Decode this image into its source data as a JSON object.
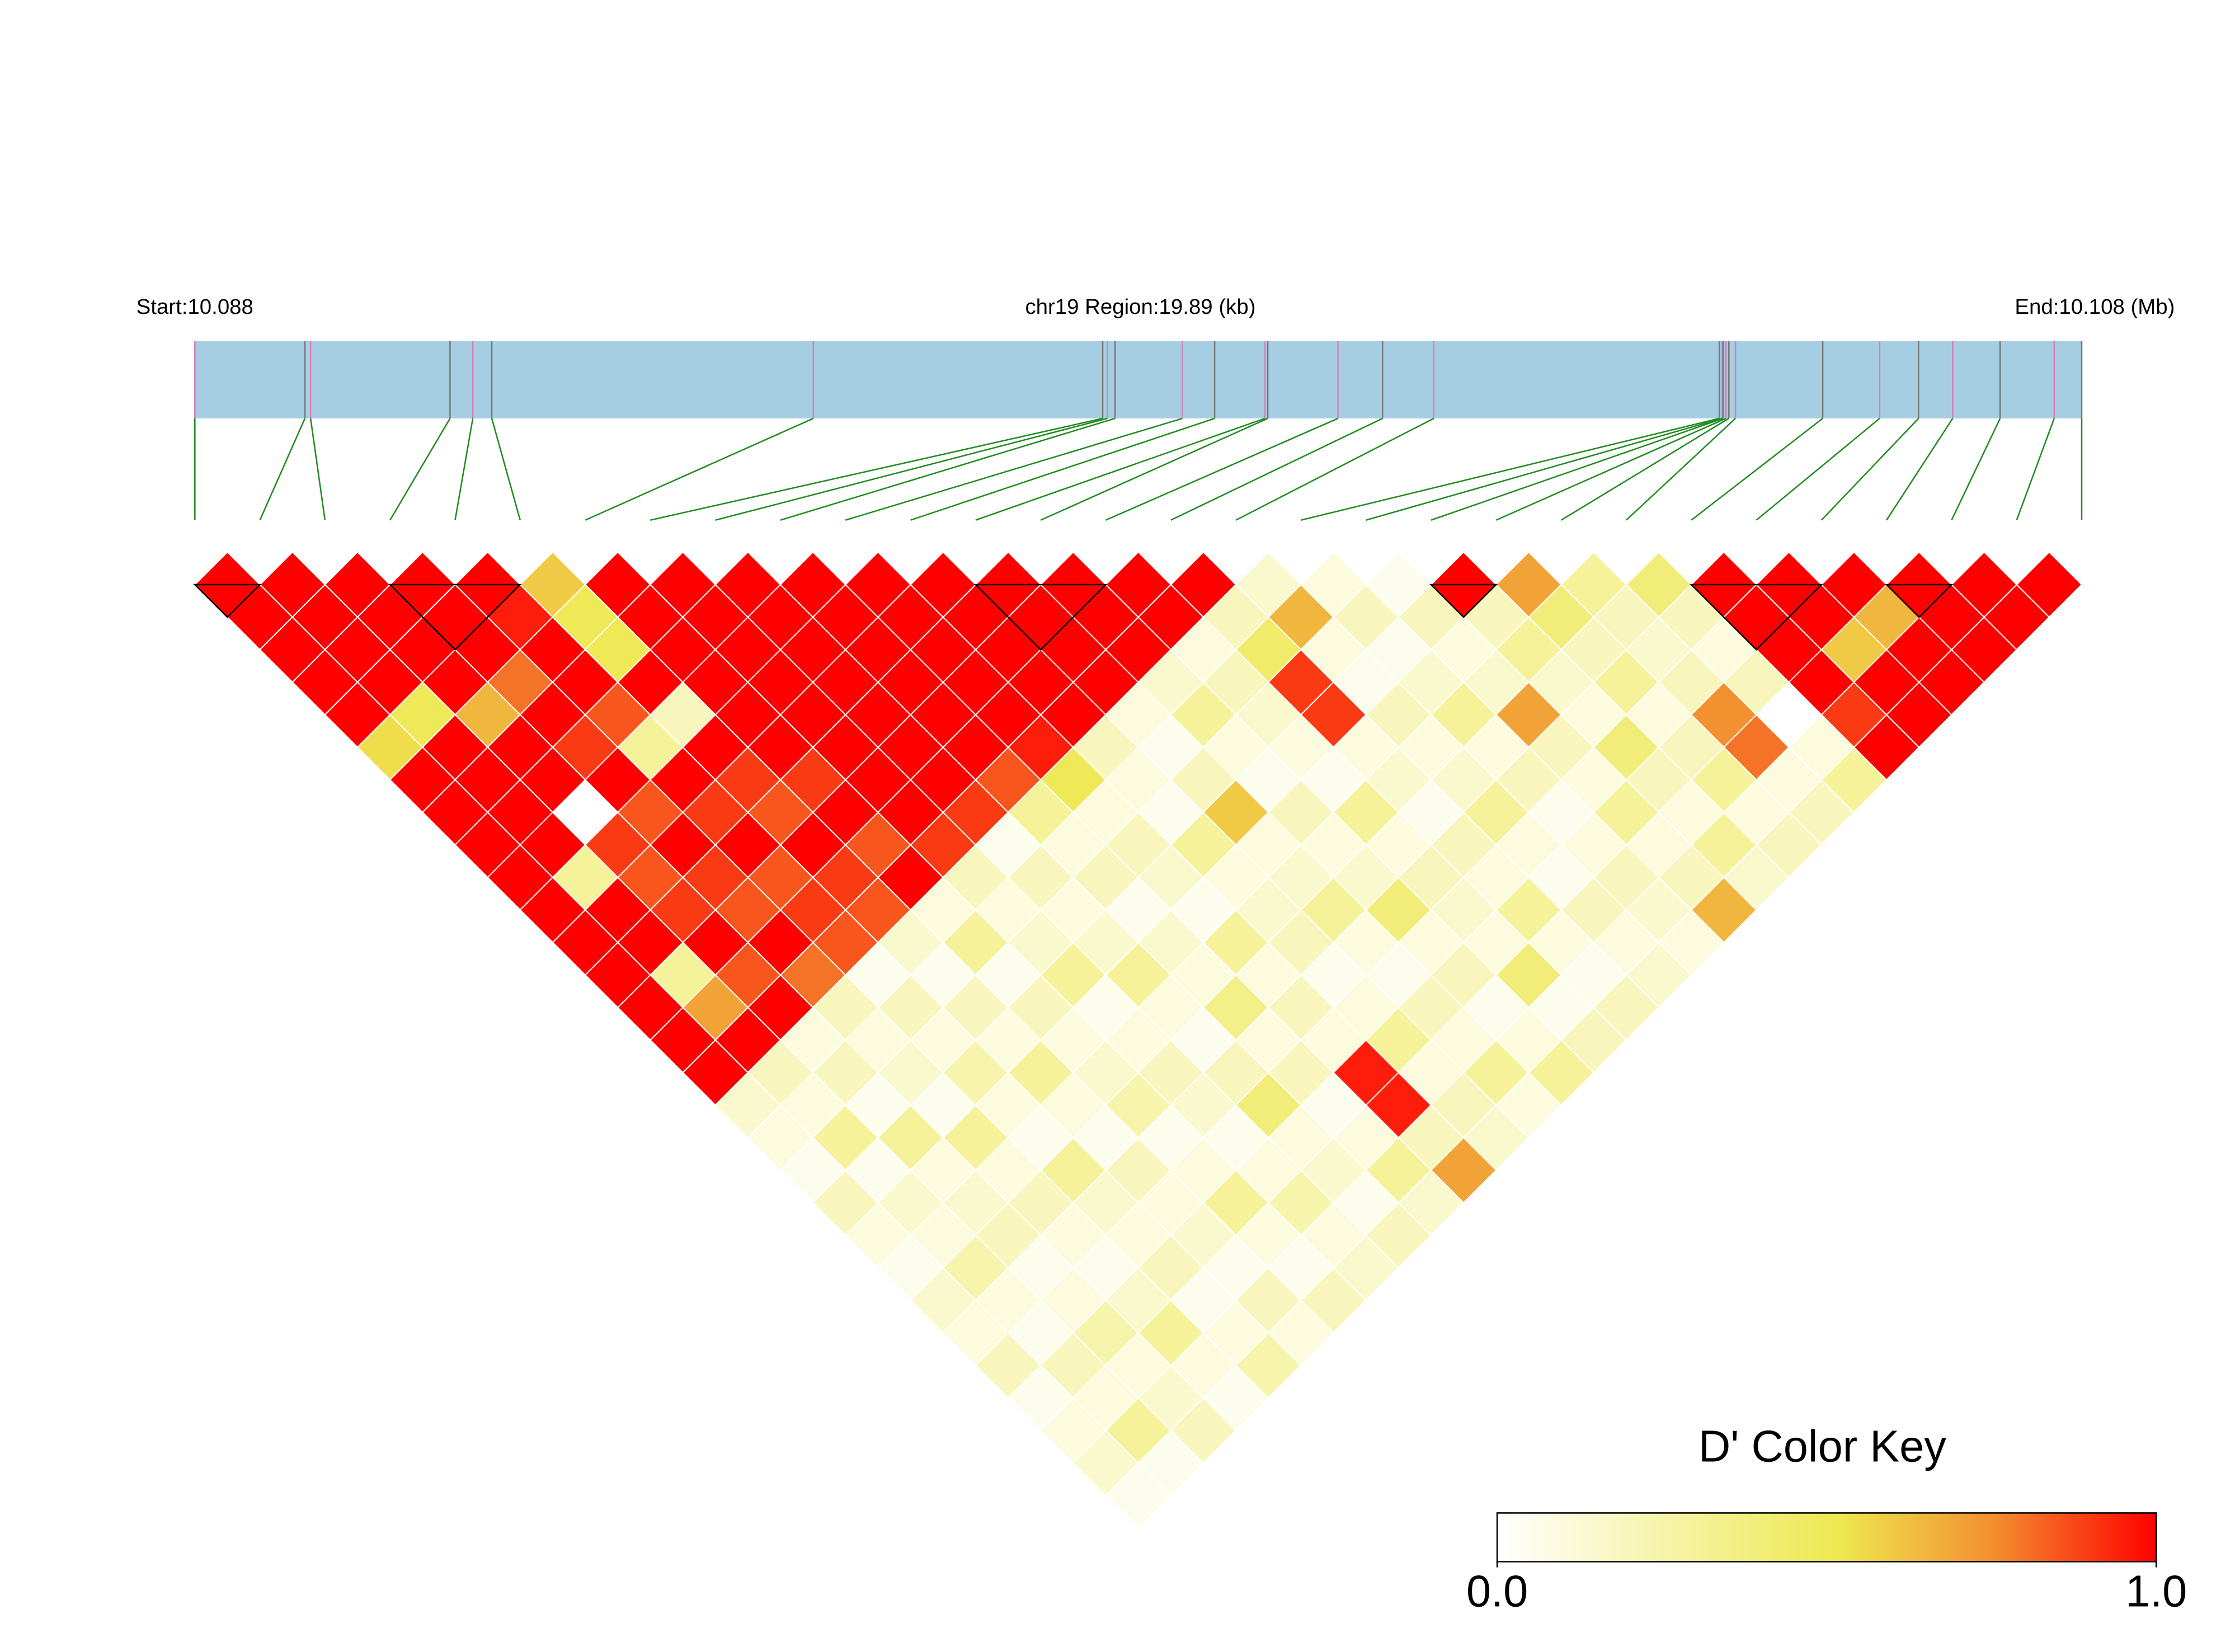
{
  "chart_data": {
    "type": "ld-heatmap",
    "header": {
      "start": "Start:10.088",
      "region": "chr19 Region:19.89 (kb)",
      "end": "End:10.108 (Mb)"
    },
    "snp_pos_kb": [
      0,
      1.16,
      1.22,
      2.69,
      2.93,
      3.13,
      6.52,
      9.57,
      9.62,
      9.7,
      10.41,
      10.75,
      11.28,
      11.31,
      12.05,
      12.52,
      13.06,
      16.07,
      16.1,
      16.11,
      16.14,
      16.17,
      16.24,
      17.16,
      17.76,
      18.17,
      18.53,
      19.03,
      19.6,
      19.89
    ],
    "xlim": [
      0,
      19.89
    ],
    "dprime": [
      [
        1,
        1,
        1,
        1,
        1,
        0.55,
        1,
        1,
        1,
        1,
        1,
        1,
        1,
        1,
        1,
        1,
        0.15,
        0.1,
        0.05,
        0.2,
        0.1,
        0.05,
        0.15,
        0.1,
        0.2,
        0.05,
        0.1,
        0.15,
        0.05
      ],
      [
        1,
        1,
        1,
        1,
        0.5,
        1,
        1,
        1,
        1,
        0.3,
        1,
        1,
        0.3,
        0.7,
        1,
        0.2,
        0.1,
        0.3,
        0.05,
        0.15,
        0.1,
        0.25,
        0.1,
        0.05,
        0.2,
        0.1,
        0.3,
        0.05
      ],
      [
        1,
        1,
        1,
        1,
        0.65,
        1,
        1,
        0,
        0.9,
        0.85,
        0.9,
        1,
        0.85,
        1,
        0.1,
        0.2,
        0.05,
        0.3,
        0.1,
        0.15,
        0.2,
        0.05,
        0.1,
        0.25,
        0.1,
        0.15,
        0.2
      ],
      [
        1,
        1,
        1,
        0.8,
        1,
        0.9,
        1,
        0.85,
        1,
        0.9,
        0.85,
        1,
        0.8,
        0.2,
        0.1,
        0.15,
        0.05,
        0.3,
        0.1,
        0.2,
        0.1,
        0.05,
        0.15,
        0.3,
        0.1,
        0.05
      ],
      [
        1,
        0.95,
        1,
        1,
        0.85,
        0.3,
        1,
        0.9,
        1,
        0.85,
        0.9,
        0.85,
        0.05,
        0.2,
        0.1,
        0.25,
        0.1,
        0.05,
        0.3,
        0.15,
        0.1,
        0.2,
        0.05,
        0.1,
        0.25
      ],
      [
        0.6,
        0.5,
        0.5,
        1,
        0.2,
        1,
        0.9,
        0.85,
        1,
        0.9,
        0.85,
        0.15,
        0.05,
        0.2,
        0.1,
        0.3,
        0.1,
        0.05,
        0.2,
        0.1,
        0.15,
        0.05,
        0.2,
        0.1
      ],
      [
        1,
        1,
        1,
        1,
        1,
        1,
        0.9,
        1,
        0.85,
        1,
        0.1,
        0.3,
        0.05,
        0.2,
        0.1,
        0.15,
        0.25,
        0.05,
        0.1,
        0.3,
        0.1,
        0.05,
        0.2
      ],
      [
        1,
        1,
        1,
        1,
        1,
        1,
        1,
        1,
        0.9,
        0.2,
        0.1,
        0.15,
        0.3,
        0.05,
        0.1,
        0.2,
        0.15,
        0.05,
        0.1,
        0.25,
        0.1,
        0.15
      ],
      [
        1,
        1,
        1,
        1,
        1,
        1,
        1,
        0.9,
        0.05,
        0.2,
        0.1,
        0.15,
        0.3,
        0.1,
        0.05,
        0.2,
        0.4,
        0.1,
        0.15,
        0.05,
        0.2
      ],
      [
        1,
        1,
        1,
        1,
        1,
        1,
        0.85,
        0.3,
        0.1,
        0.2,
        0.05,
        0.15,
        0.1,
        0.35,
        0.1,
        0.2,
        0.05,
        0.1,
        0.3,
        0.15
      ],
      [
        1,
        1,
        1,
        1,
        1,
        0.95,
        0.5,
        0.1,
        0.2,
        0.15,
        0.05,
        0.3,
        0.1,
        0.2,
        0.1,
        0.95,
        0.95,
        0.2,
        0.7
      ],
      [
        1,
        1,
        1,
        1,
        1,
        0.2,
        0.1,
        0.05,
        0.3,
        0.1,
        0.15,
        0.2,
        0.05,
        0.1,
        0.3,
        0.1,
        0.2,
        0.15
      ],
      [
        1,
        1,
        1,
        1,
        0.1,
        0.05,
        0.2,
        0.6,
        0.1,
        0.15,
        0.3,
        0.1,
        0.05,
        0.2,
        0.1,
        0.3,
        0.1
      ],
      [
        1,
        1,
        1,
        0.15,
        0.3,
        0.1,
        0.05,
        0.2,
        0.1,
        0.15,
        0.4,
        0.1,
        0.2,
        0.05,
        0.1,
        0.3
      ],
      [
        1,
        1,
        0.1,
        0.2,
        0.15,
        0.1,
        0.05,
        0.3,
        0.1,
        0.2,
        0.15,
        0.1,
        0.4,
        0.05,
        0.2
      ],
      [
        1,
        0.2,
        0.45,
        0.9,
        0.9,
        0.1,
        0.15,
        0.05,
        0.2,
        0.1,
        0.3,
        0.1,
        0.05,
        0.2
      ],
      [
        0.15,
        0.65,
        0.1,
        0.05,
        0.2,
        0.1,
        0.15,
        0.3,
        0.1,
        0.05,
        0.2,
        0.1,
        0.15
      ],
      [
        0.1,
        0.2,
        0.05,
        0.15,
        0.3,
        0.1,
        0.2,
        0.05,
        0.1,
        0.2,
        0.15,
        0.1
      ],
      [
        0.05,
        0.2,
        0.1,
        0.15,
        0.7,
        0.2,
        0.1,
        0.3,
        0.1,
        0.2,
        0.65
      ],
      [
        1,
        0.2,
        0.3,
        0.15,
        0.1,
        0.4,
        0.2,
        0.1,
        0.3,
        0.15
      ],
      [
        0.7,
        0.4,
        0.2,
        0.3,
        0.1,
        0.2,
        0.3,
        0.1,
        0.2
      ],
      [
        0.3,
        0.2,
        0.15,
        0.2,
        0.75,
        0.8,
        0.1,
        0.2
      ],
      [
        0.4,
        0.2,
        0.1,
        0.2,
        0,
        0.1,
        0.3
      ],
      [
        1,
        1,
        1,
        1,
        0.9,
        1
      ],
      [
        1,
        1,
        0.6,
        1,
        1
      ],
      [
        1,
        0.65,
        1,
        1
      ],
      [
        1,
        1,
        1
      ],
      [
        1,
        1
      ],
      [
        1
      ]
    ],
    "ld_blocks": [
      [
        0,
        1
      ],
      [
        3,
        5
      ],
      [
        12,
        14
      ],
      [
        19,
        20
      ],
      [
        23,
        25
      ],
      [
        26,
        27
      ]
    ],
    "colorscale": [
      [
        0,
        "#ffffff"
      ],
      [
        0.52,
        "#eee850"
      ],
      [
        0.75,
        "#f39030"
      ],
      [
        1,
        "#ff0000"
      ]
    ],
    "gene_color": "#a6cee3",
    "link_color": "#228b22",
    "key": {
      "title": "D' Color Key",
      "ticks": [
        {
          "value": 0,
          "label": "0.0"
        },
        {
          "value": 1,
          "label": "1.0"
        }
      ]
    }
  }
}
